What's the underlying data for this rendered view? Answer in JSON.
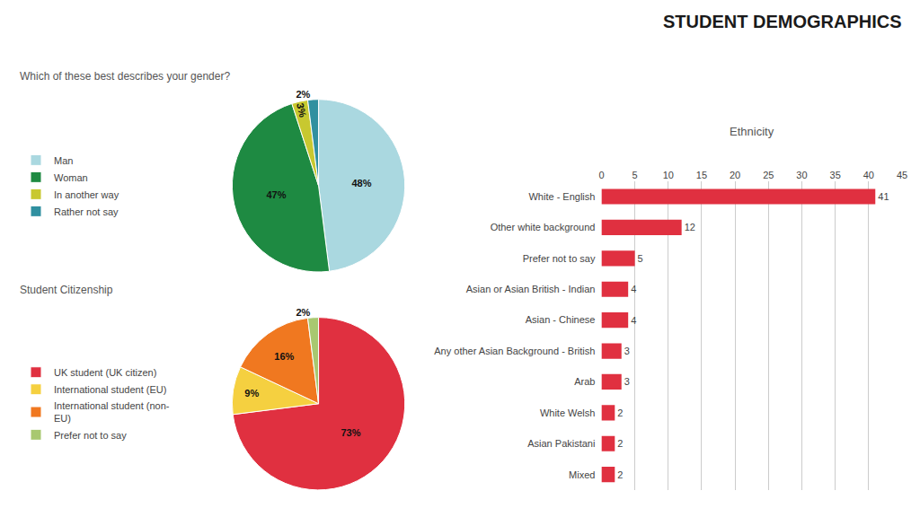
{
  "title": "STUDENT DEMOGRAPHICS",
  "chart_data": [
    {
      "type": "pie",
      "title": "Which of these best describes your gender?",
      "categories": [
        "Man",
        "Woman",
        "In another way",
        "Rather not say"
      ],
      "values": [
        48,
        47,
        3,
        2
      ],
      "value_labels": [
        "48%",
        "47%",
        "3%",
        "2%"
      ],
      "colors": [
        "#aad8e0",
        "#1e8a42",
        "#c8c830",
        "#3090a0"
      ],
      "data_labels": true,
      "legend": "left"
    },
    {
      "type": "pie",
      "title": "Student Citizenship",
      "categories": [
        "UK student (UK citizen)",
        "International student (EU)",
        "International student (non-\nEU)",
        "Prefer not to say"
      ],
      "values": [
        73,
        9,
        16,
        2
      ],
      "value_labels": [
        "73%",
        "9%",
        "16%",
        "2%"
      ],
      "colors": [
        "#e03040",
        "#f5d040",
        "#f07820",
        "#a8c870"
      ],
      "data_labels": true,
      "legend": "left"
    },
    {
      "type": "bar",
      "title": "Ethnicity",
      "orientation": "horizontal",
      "categories": [
        "White - English",
        "Other white background",
        "Prefer not to say",
        "Asian or Asian British - Indian",
        "Asian - Chinese",
        "Any other Asian Background - British",
        "Arab",
        "White Welsh",
        "Asian Pakistani",
        "Mixed"
      ],
      "values": [
        41,
        12,
        5,
        4,
        4,
        3,
        3,
        2,
        2,
        2
      ],
      "color": "#e03040",
      "xlim": [
        0,
        45
      ],
      "xticks": [
        0,
        5,
        10,
        15,
        20,
        25,
        30,
        35,
        40,
        45
      ],
      "grid": true,
      "data_labels": true
    }
  ]
}
